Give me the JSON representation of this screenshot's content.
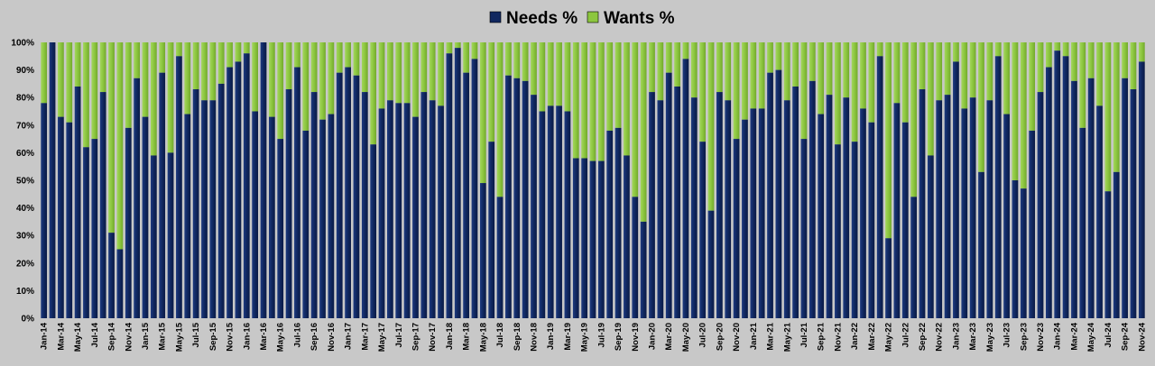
{
  "chart_data": {
    "type": "bar",
    "stacked": true,
    "percent_stacked": true,
    "title": "",
    "xlabel": "",
    "ylabel": "",
    "ylim": [
      0,
      100
    ],
    "y_ticks": [
      "0%",
      "10%",
      "20%",
      "30%",
      "40%",
      "50%",
      "60%",
      "70%",
      "80%",
      "90%",
      "100%"
    ],
    "legend_position": "top",
    "grid": false,
    "colors": {
      "needs": "#10275f",
      "wants": "#8cc63f",
      "background": "#c8c8c8"
    },
    "x_tick_labels": [
      "Jan-14",
      "Mar-14",
      "May-14",
      "Jul-14",
      "Sep-14",
      "Nov-14",
      "Jan-15",
      "Mar-15",
      "May-15",
      "Jul-15",
      "Sep-15",
      "Nov-15",
      "Jan-16",
      "Mar-16",
      "May-16",
      "Jul-16",
      "Sep-16",
      "Nov-16",
      "Jan-17",
      "Mar-17",
      "May-17",
      "Jul-17",
      "Sep-17",
      "Nov-17",
      "Jan-18",
      "Mar-18",
      "May-18",
      "Jul-18",
      "Sep-18",
      "Nov-18",
      "Jan-19",
      "Mar-19",
      "May-19",
      "Jul-19",
      "Sep-19",
      "Nov-19",
      "Jan-20",
      "Mar-20",
      "May-20",
      "Jul-20",
      "Sep-20",
      "Nov-20",
      "Jan-21",
      "Mar-21",
      "May-21",
      "Jul-21",
      "Sep-21",
      "Nov-21",
      "Jan-22",
      "Mar-22",
      "May-22",
      "Jul-22",
      "Sep-22",
      "Nov-22",
      "Jan-23",
      "Mar-23",
      "May-23",
      "Jul-23",
      "Sep-23",
      "Nov-23",
      "Jan-24",
      "Mar-24",
      "May-24",
      "Jul-24",
      "Sep-24",
      "Nov-24"
    ],
    "series": [
      {
        "name": "Needs %",
        "values": [
          78,
          100,
          73,
          71,
          84,
          62,
          65,
          82,
          31,
          25,
          69,
          87,
          73,
          59,
          89,
          60,
          95,
          74,
          83,
          79,
          79,
          85,
          91,
          93,
          96,
          75,
          100,
          73,
          65,
          83,
          91,
          68,
          82,
          72,
          74,
          89,
          91,
          88,
          82,
          63,
          76,
          79,
          78,
          78,
          73,
          82,
          79,
          77,
          96,
          98,
          89,
          94,
          49,
          64,
          44,
          88,
          87,
          86,
          81,
          75,
          77,
          77,
          75,
          58,
          58,
          57,
          57,
          68,
          69,
          59,
          44,
          35,
          82,
          79,
          89,
          84,
          94,
          80,
          64,
          39,
          82,
          79,
          65,
          72,
          76,
          76,
          89,
          90,
          79,
          84,
          65,
          86,
          74,
          81,
          63,
          80,
          64,
          76,
          71,
          95,
          29,
          78,
          71,
          44,
          83,
          59,
          79,
          81,
          93,
          76,
          80,
          53,
          79,
          95,
          74,
          50,
          47,
          68,
          82,
          91,
          97,
          95,
          86,
          69,
          87,
          77,
          46,
          53,
          87,
          83,
          93
        ]
      },
      {
        "name": "Wants %",
        "values": [
          22,
          0,
          27,
          29,
          16,
          38,
          35,
          18,
          69,
          75,
          31,
          13,
          27,
          41,
          11,
          40,
          5,
          26,
          17,
          21,
          21,
          15,
          9,
          7,
          4,
          25,
          0,
          27,
          35,
          17,
          9,
          32,
          18,
          28,
          26,
          11,
          9,
          12,
          18,
          37,
          24,
          21,
          22,
          22,
          27,
          18,
          21,
          23,
          4,
          2,
          11,
          6,
          51,
          36,
          56,
          12,
          13,
          14,
          19,
          25,
          23,
          23,
          25,
          42,
          42,
          43,
          43,
          32,
          31,
          41,
          56,
          65,
          18,
          21,
          11,
          16,
          6,
          20,
          36,
          61,
          18,
          21,
          35,
          28,
          24,
          24,
          11,
          10,
          21,
          16,
          35,
          14,
          26,
          19,
          37,
          20,
          36,
          24,
          29,
          5,
          71,
          22,
          29,
          56,
          17,
          41,
          21,
          19,
          7,
          24,
          20,
          47,
          21,
          5,
          26,
          50,
          53,
          32,
          18,
          9,
          3,
          5,
          14,
          31,
          13,
          23,
          54,
          47,
          13,
          17,
          7
        ]
      }
    ]
  }
}
